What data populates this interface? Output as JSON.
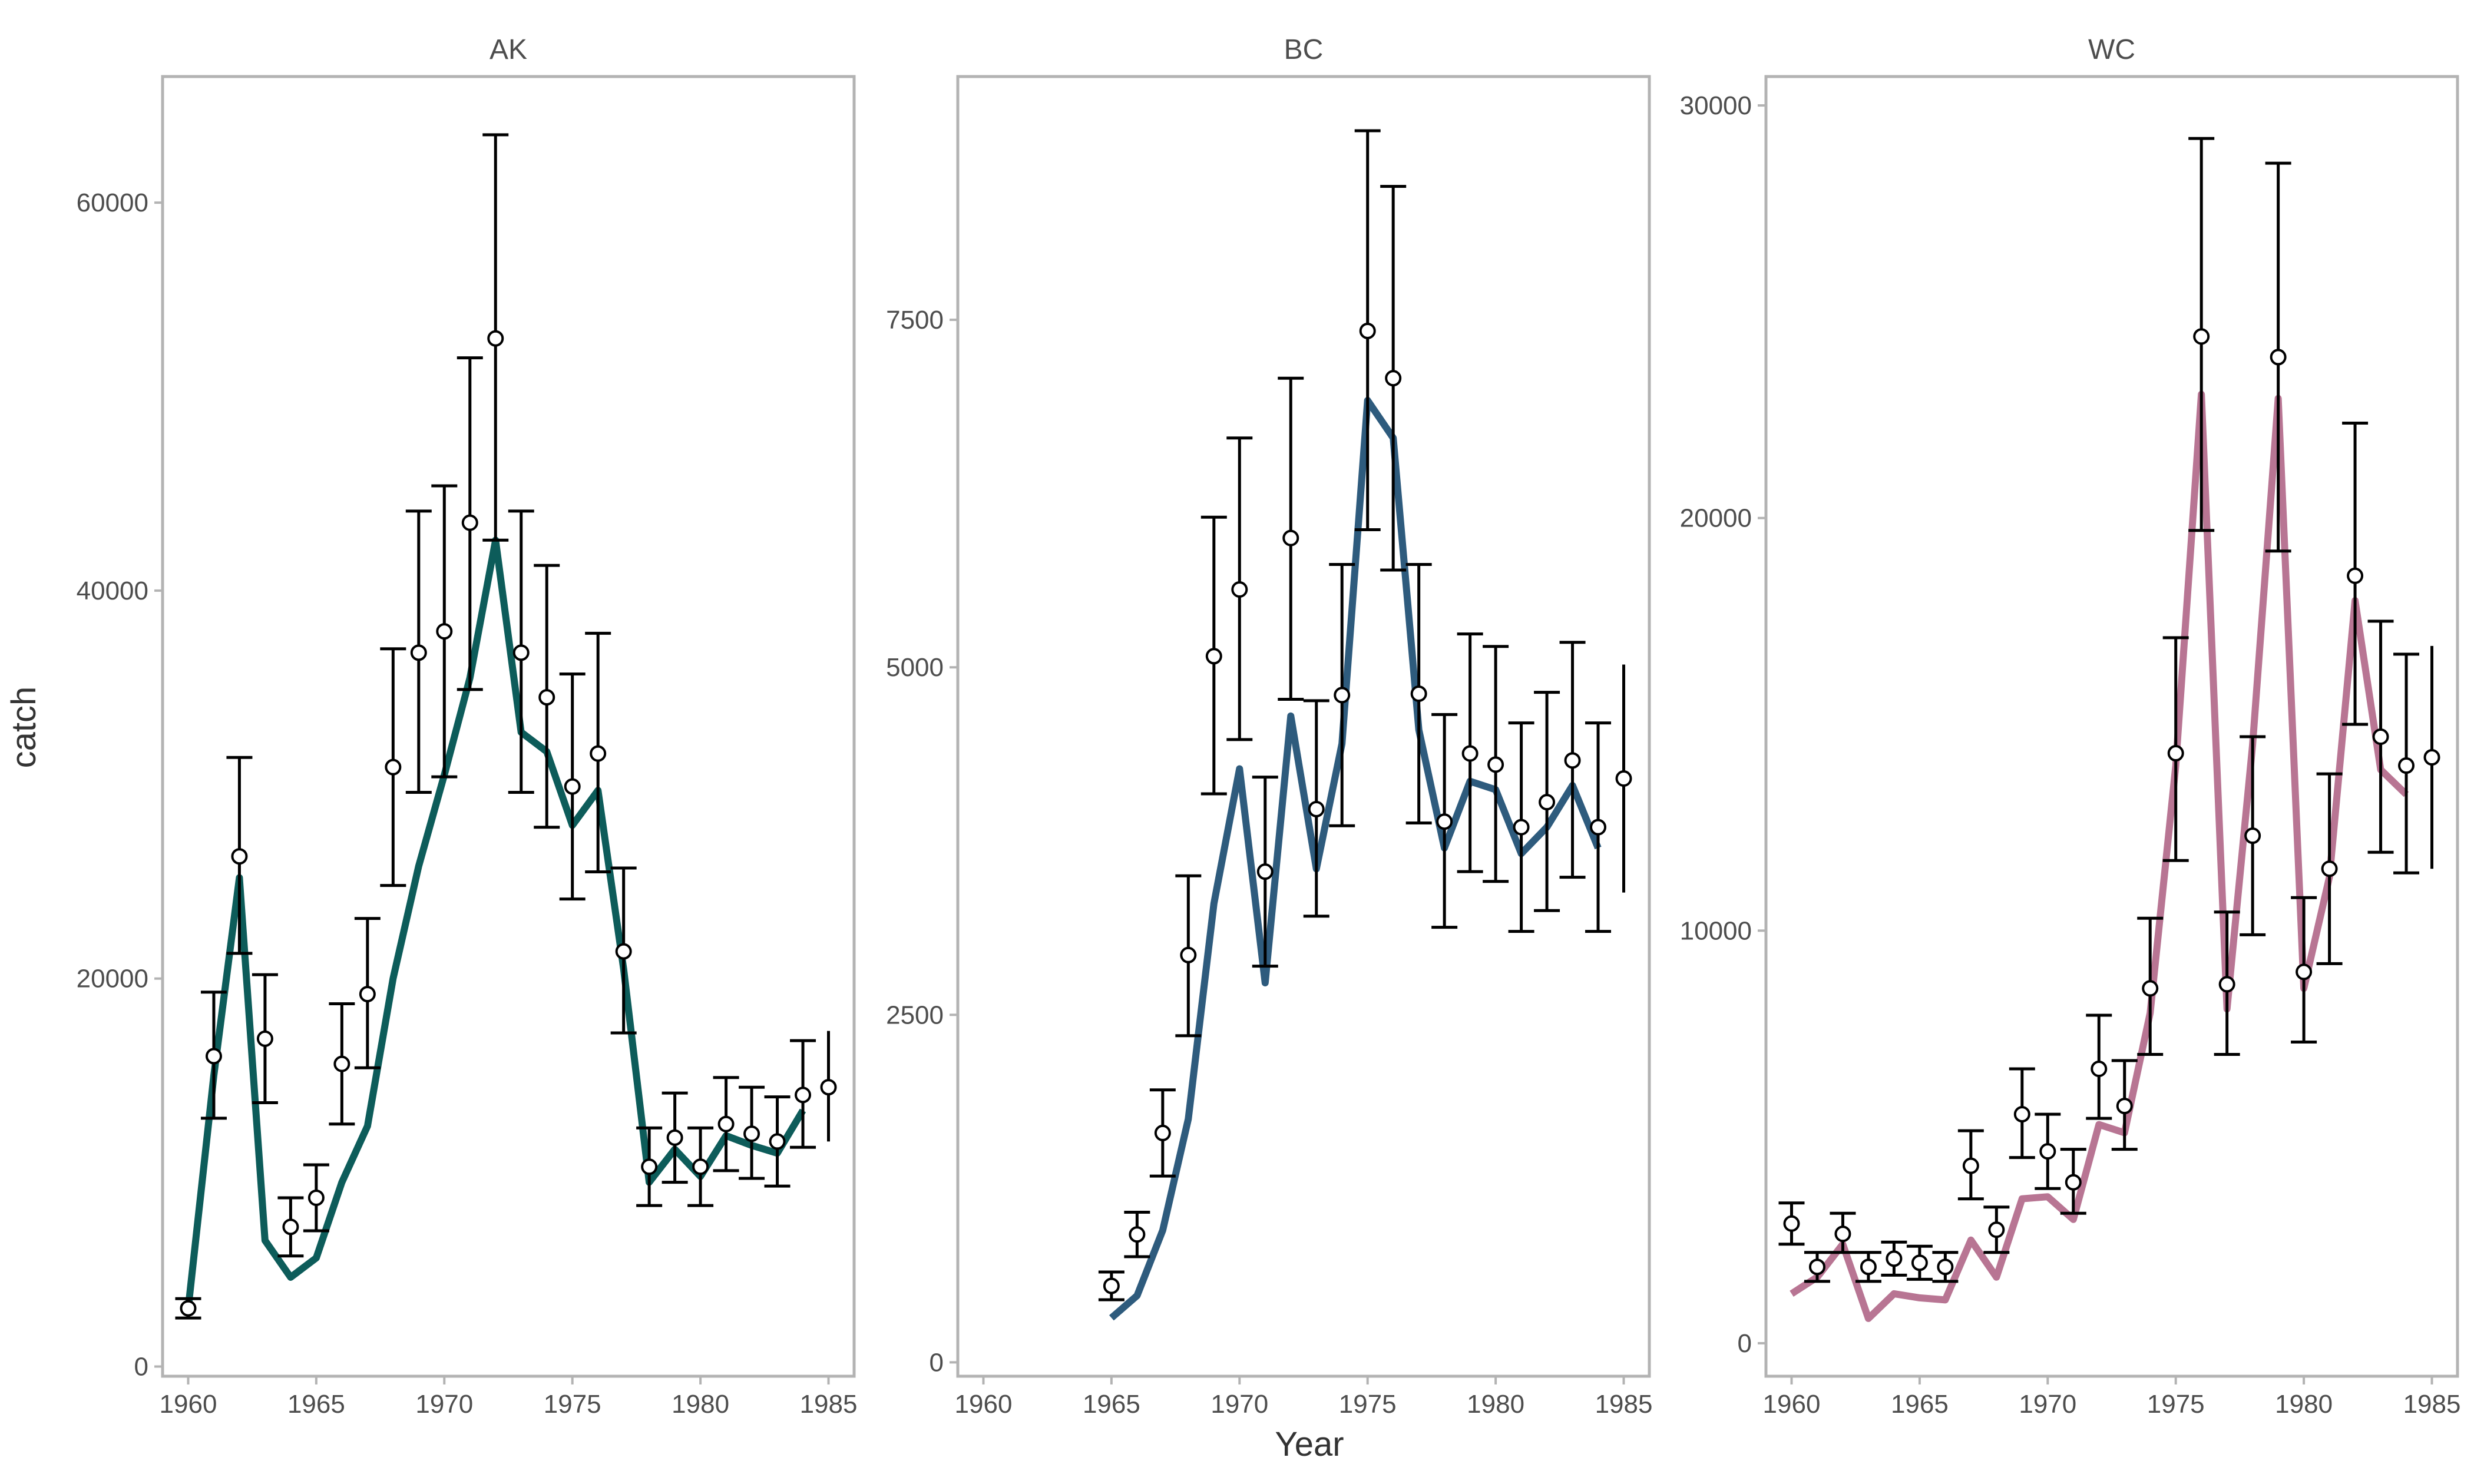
{
  "chart_data": {
    "type": "line",
    "xlabel": "Year",
    "ylabel": "catch",
    "xlim": [
      1959,
      1986
    ],
    "xticks": [
      1960,
      1965,
      1970,
      1975,
      1980,
      1985
    ],
    "colors": {
      "observed": "#000000",
      "axis_text": "#4d4d4d",
      "panel_border": "#b3b3b3"
    },
    "panels": [
      {
        "name": "AK",
        "line_color": "#0d5c5a",
        "ylim": [
          -500,
          66500
        ],
        "yticks": [
          0,
          20000,
          40000,
          60000
        ],
        "fitted": {
          "x": [
            1960,
            1961,
            1962,
            1963,
            1964,
            1965,
            1966,
            1967,
            1968,
            1969,
            1970,
            1971,
            1972,
            1973,
            1974,
            1975,
            1976,
            1977,
            1978,
            1979,
            1980,
            1981,
            1982,
            1983,
            1984
          ],
          "y": [
            3000,
            15000,
            25200,
            6500,
            4600,
            5600,
            9500,
            12400,
            20000,
            25800,
            30500,
            35500,
            42600,
            32700,
            31700,
            27900,
            29700,
            20500,
            9500,
            11200,
            9800,
            11900,
            11400,
            11000,
            13200
          ]
        },
        "observed": {
          "x": [
            1960,
            1961,
            1962,
            1963,
            1964,
            1965,
            1966,
            1967,
            1968,
            1969,
            1970,
            1971,
            1972,
            1973,
            1974,
            1975,
            1976,
            1977,
            1978,
            1979,
            1980,
            1981,
            1982,
            1983,
            1984,
            1985
          ],
          "y": [
            3000,
            16000,
            26300,
            16900,
            7200,
            8700,
            15600,
            19200,
            30900,
            36800,
            37900,
            43500,
            53000,
            36800,
            34500,
            29900,
            31600,
            21400,
            10300,
            11800,
            10300,
            12500,
            12000,
            11600,
            14000,
            14400
          ],
          "lower": [
            2500,
            12800,
            21300,
            13600,
            5700,
            7000,
            12500,
            15400,
            24800,
            29600,
            30400,
            34900,
            42600,
            29600,
            27800,
            24100,
            25500,
            17200,
            8300,
            9500,
            8300,
            10100,
            9700,
            9300,
            11300,
            11600
          ],
          "upper": [
            3500,
            19300,
            31400,
            20200,
            8700,
            10400,
            18700,
            23100,
            37000,
            44100,
            45400,
            52000,
            63500,
            44100,
            41300,
            35700,
            37800,
            25700,
            12300,
            14100,
            12300,
            14900,
            14400,
            13900,
            16800,
            17300
          ],
          "capped": [
            1,
            1,
            1,
            1,
            1,
            1,
            1,
            1,
            1,
            1,
            1,
            1,
            1,
            1,
            1,
            1,
            1,
            1,
            1,
            1,
            1,
            1,
            1,
            1,
            1,
            0
          ]
        }
      },
      {
        "name": "BC",
        "line_color": "#2e5b7d",
        "ylim": [
          -100,
          9250
        ],
        "yticks": [
          0,
          2500,
          5000,
          7500
        ],
        "fitted": {
          "x": [
            1965,
            1966,
            1967,
            1968,
            1969,
            1970,
            1971,
            1972,
            1973,
            1974,
            1975,
            1976,
            1977,
            1978,
            1979,
            1980,
            1981,
            1982,
            1983,
            1984
          ],
          "y": [
            320,
            480,
            950,
            1750,
            3300,
            4270,
            2730,
            4650,
            3550,
            4450,
            6920,
            6650,
            4550,
            3700,
            4180,
            4120,
            3660,
            3850,
            4150,
            3700
          ]
        },
        "observed": {
          "x": [
            1965,
            1966,
            1967,
            1968,
            1969,
            1970,
            1971,
            1972,
            1973,
            1974,
            1975,
            1976,
            1977,
            1978,
            1979,
            1980,
            1981,
            1982,
            1983,
            1984,
            1985
          ],
          "y": [
            550,
            920,
            1650,
            2930,
            5080,
            5560,
            3530,
            5930,
            3980,
            4800,
            7420,
            7080,
            4810,
            3890,
            4380,
            4300,
            3850,
            4030,
            4330,
            3850,
            4200
          ],
          "lower": [
            450,
            760,
            1340,
            2350,
            4090,
            4480,
            2850,
            4770,
            3210,
            3860,
            5990,
            5700,
            3880,
            3130,
            3530,
            3460,
            3100,
            3250,
            3490,
            3100,
            3380
          ],
          "upper": [
            650,
            1080,
            1960,
            3500,
            6080,
            6650,
            4210,
            7080,
            4760,
            5740,
            8860,
            8460,
            5740,
            4660,
            5240,
            5150,
            4600,
            4820,
            5180,
            4600,
            5020
          ],
          "capped": [
            1,
            1,
            1,
            1,
            1,
            1,
            1,
            1,
            1,
            1,
            1,
            1,
            1,
            1,
            1,
            1,
            1,
            1,
            1,
            1,
            0
          ]
        }
      },
      {
        "name": "WC",
        "line_color": "#b87593",
        "ylim": [
          -800,
          30700
        ],
        "yticks": [
          0,
          10000,
          20000,
          30000
        ],
        "fitted": {
          "x": [
            1960,
            1961,
            1962,
            1963,
            1964,
            1965,
            1966,
            1967,
            1968,
            1969,
            1970,
            1971,
            1972,
            1973,
            1974,
            1975,
            1976,
            1977,
            1978,
            1979,
            1980,
            1981,
            1982,
            1983,
            1984
          ],
          "y": [
            1200,
            1600,
            2400,
            600,
            1200,
            1100,
            1050,
            2500,
            1600,
            3500,
            3550,
            3000,
            5300,
            5100,
            8000,
            14000,
            23000,
            8100,
            14500,
            22900,
            8600,
            11300,
            18000,
            13900,
            13300
          ]
        },
        "observed": {
          "x": [
            1960,
            1961,
            1962,
            1963,
            1964,
            1965,
            1966,
            1967,
            1968,
            1969,
            1970,
            1971,
            1972,
            1973,
            1974,
            1975,
            1976,
            1977,
            1978,
            1979,
            1980,
            1981,
            1982,
            1983,
            1984,
            1985
          ],
          "y": [
            2900,
            1850,
            2650,
            1850,
            2050,
            1950,
            1850,
            4300,
            2750,
            5550,
            4650,
            3900,
            6650,
            5750,
            8600,
            14300,
            24400,
            8700,
            12300,
            23900,
            9000,
            11500,
            18600,
            14700,
            14000,
            14200
          ],
          "lower": [
            2400,
            1500,
            2200,
            1500,
            1650,
            1550,
            1500,
            3500,
            2200,
            4500,
            3750,
            3150,
            5450,
            4700,
            7000,
            11700,
            19700,
            7000,
            9900,
            19200,
            7300,
            9200,
            15000,
            11900,
            11400,
            11500
          ],
          "upper": [
            3400,
            2200,
            3150,
            2200,
            2450,
            2350,
            2200,
            5150,
            3300,
            6650,
            5550,
            4700,
            7950,
            6850,
            10300,
            17100,
            29200,
            10450,
            14700,
            28600,
            10800,
            13800,
            22300,
            17500,
            16700,
            16900
          ],
          "capped": [
            1,
            1,
            1,
            1,
            1,
            1,
            1,
            1,
            1,
            1,
            1,
            1,
            1,
            1,
            1,
            1,
            1,
            1,
            1,
            1,
            1,
            1,
            1,
            1,
            1,
            0
          ]
        }
      }
    ]
  }
}
